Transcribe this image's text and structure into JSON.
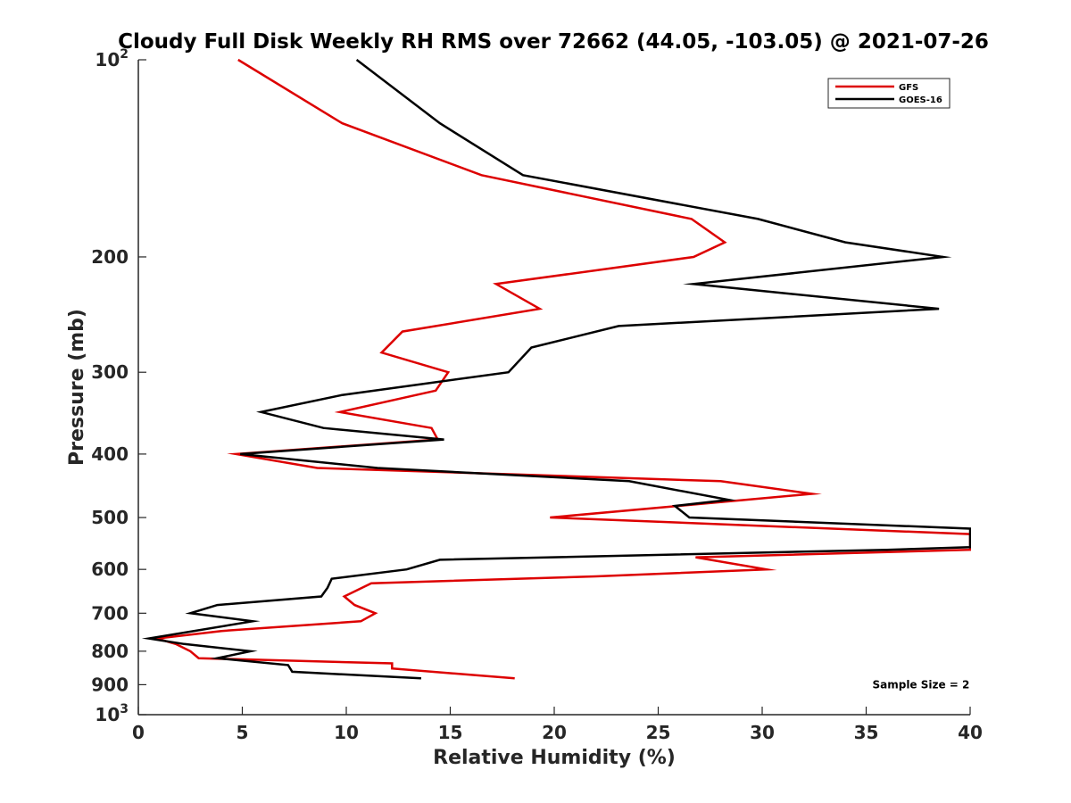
{
  "chart_data": {
    "type": "line",
    "title": "Cloudy Full Disk Weekly RH RMS over 72662 (44.05, -103.05) @ 2021-07-26",
    "xlabel": "Relative Humidity (%)",
    "ylabel": "Pressure (mb)",
    "xlim": [
      0,
      40
    ],
    "ylim": [
      100,
      1000
    ],
    "y_scale": "log",
    "y_reversed": true,
    "grid": false,
    "legend_position": "top-right",
    "x_ticks": [
      "0",
      "5",
      "10",
      "15",
      "20",
      "25",
      "30",
      "35",
      "40"
    ],
    "y_ticks": [
      {
        "value": 100,
        "base": "10",
        "exp": "2"
      },
      {
        "value": 200,
        "label": "200"
      },
      {
        "value": 300,
        "label": "300"
      },
      {
        "value": 400,
        "label": "400"
      },
      {
        "value": 500,
        "label": "500"
      },
      {
        "value": 600,
        "label": "600"
      },
      {
        "value": 700,
        "label": "700"
      },
      {
        "value": 800,
        "label": "800"
      },
      {
        "value": 900,
        "label": "900"
      },
      {
        "value": 1000,
        "base": "10",
        "exp": "3"
      }
    ],
    "series": [
      {
        "name": "GFS",
        "color": "#dd0000",
        "points": [
          [
            4.8,
            100
          ],
          [
            9.8,
            125
          ],
          [
            16.5,
            150
          ],
          [
            26.6,
            175
          ],
          [
            28.2,
            190
          ],
          [
            26.7,
            200
          ],
          [
            17.2,
            220
          ],
          [
            19.3,
            240
          ],
          [
            12.7,
            260
          ],
          [
            11.7,
            280
          ],
          [
            14.9,
            300
          ],
          [
            14.3,
            320
          ],
          [
            9.7,
            345
          ],
          [
            14.1,
            365
          ],
          [
            14.4,
            380
          ],
          [
            4.7,
            400
          ],
          [
            8.6,
            420
          ],
          [
            28.0,
            440
          ],
          [
            32.4,
            460
          ],
          [
            19.8,
            500
          ],
          [
            40.0,
            530
          ],
          [
            40.0,
            560
          ],
          [
            26.8,
            575
          ],
          [
            30.2,
            600
          ],
          [
            22.0,
            615
          ],
          [
            11.2,
            630
          ],
          [
            9.9,
            660
          ],
          [
            10.4,
            680
          ],
          [
            11.4,
            700
          ],
          [
            10.7,
            720
          ],
          [
            4.0,
            745
          ],
          [
            0.9,
            765
          ],
          [
            1.8,
            780
          ],
          [
            2.5,
            800
          ],
          [
            2.9,
            820
          ],
          [
            12.2,
            835
          ],
          [
            12.2,
            850
          ],
          [
            18.1,
            880
          ]
        ]
      },
      {
        "name": "GOES-16",
        "color": "#000000",
        "points": [
          [
            10.5,
            100
          ],
          [
            14.5,
            125
          ],
          [
            18.5,
            150
          ],
          [
            29.8,
            175
          ],
          [
            34.0,
            190
          ],
          [
            38.7,
            200
          ],
          [
            26.7,
            220
          ],
          [
            38.5,
            240
          ],
          [
            23.1,
            255
          ],
          [
            18.9,
            275
          ],
          [
            17.8,
            300
          ],
          [
            9.8,
            325
          ],
          [
            5.9,
            345
          ],
          [
            8.9,
            365
          ],
          [
            14.7,
            380
          ],
          [
            4.9,
            400
          ],
          [
            11.5,
            420
          ],
          [
            23.6,
            440
          ],
          [
            28.4,
            470
          ],
          [
            25.8,
            480
          ],
          [
            26.5,
            500
          ],
          [
            40.0,
            520
          ],
          [
            40.0,
            555
          ],
          [
            36.0,
            560
          ],
          [
            14.5,
            580
          ],
          [
            12.9,
            600
          ],
          [
            9.3,
            620
          ],
          [
            9.1,
            640
          ],
          [
            8.8,
            660
          ],
          [
            3.8,
            680
          ],
          [
            2.5,
            700
          ],
          [
            5.5,
            720
          ],
          [
            0.5,
            765
          ],
          [
            2.2,
            780
          ],
          [
            5.4,
            800
          ],
          [
            3.8,
            820
          ],
          [
            7.2,
            840
          ],
          [
            7.4,
            860
          ],
          [
            13.6,
            880
          ]
        ]
      }
    ],
    "annotations": [
      {
        "text": "Sample Size = 2",
        "x": 35.3,
        "y": 900
      }
    ]
  }
}
